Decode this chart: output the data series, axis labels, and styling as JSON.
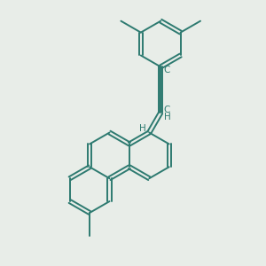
{
  "bg": "#e8ede8",
  "lc": "#2d7a70",
  "lw": 1.4,
  "figsize": [
    3.0,
    3.0
  ],
  "dpi": 100,
  "xlim": [
    0,
    10
  ],
  "ylim": [
    0,
    10
  ]
}
